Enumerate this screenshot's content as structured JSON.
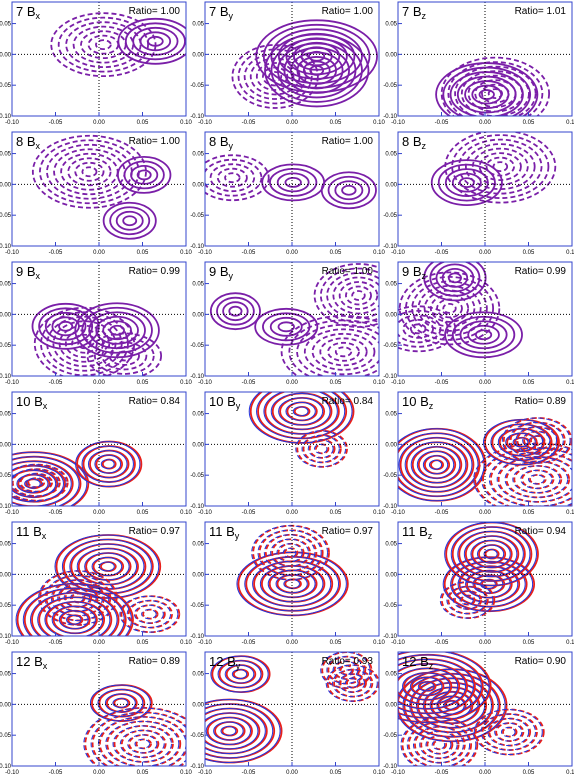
{
  "panels": [
    {
      "label": "7 B",
      "sub": "x",
      "ratio": "Ratio= 1.00"
    },
    {
      "label": "7 B",
      "sub": "y",
      "ratio": "Ratio= 1.00"
    },
    {
      "label": "7 B",
      "sub": "z",
      "ratio": "Ratio= 1.01"
    },
    {
      "label": "8 B",
      "sub": "x",
      "ratio": "Ratio= 1.00"
    },
    {
      "label": "8 B",
      "sub": "y",
      "ratio": "Ratio= 1.00"
    },
    {
      "label": "8 B",
      "sub": "z"
    },
    {
      "label": "9 B",
      "sub": "x",
      "ratio": "Ratio= 0.99"
    },
    {
      "label": "9 B",
      "sub": "y",
      "ratio": "Ratio= 1.00"
    },
    {
      "label": "9 B",
      "sub": "z",
      "ratio": "Ratio= 0.99"
    },
    {
      "label": "10 B",
      "sub": "x",
      "ratio": "Ratio= 0.84"
    },
    {
      "label": "10 B",
      "sub": "y",
      "ratio": "Ratio= 0.84"
    },
    {
      "label": "10 B",
      "sub": "z",
      "ratio": "Ratio= 0.89"
    },
    {
      "label": "11 B",
      "sub": "x",
      "ratio": "Ratio= 0.97"
    },
    {
      "label": "11 B",
      "sub": "y",
      "ratio": "Ratio= 0.97"
    },
    {
      "label": "11 B",
      "sub": "z",
      "ratio": "Ratio= 0.94"
    },
    {
      "label": "12 B",
      "sub": "x",
      "ratio": "Ratio= 0.89"
    },
    {
      "label": "12 B",
      "sub": "y",
      "ratio": "Ratio= 0.93"
    },
    {
      "label": "12 B",
      "sub": "z",
      "ratio": "Ratio= 0.90"
    }
  ],
  "xticks": [
    {
      "value": -0.1,
      "label": "-0.10"
    },
    {
      "value": -0.05,
      "label": "-0.05"
    },
    {
      "value": 0,
      "label": "0.00"
    },
    {
      "value": 0.05,
      "label": "0.05"
    },
    {
      "value": 0.1,
      "label": "0.10"
    }
  ],
  "yticks": [
    {
      "value": -0.1,
      "label": "-0.10"
    },
    {
      "value": -0.05,
      "label": "-0.05"
    },
    {
      "value": 0,
      "label": "0.00"
    },
    {
      "value": 0.05,
      "label": "0.05"
    }
  ]
}
